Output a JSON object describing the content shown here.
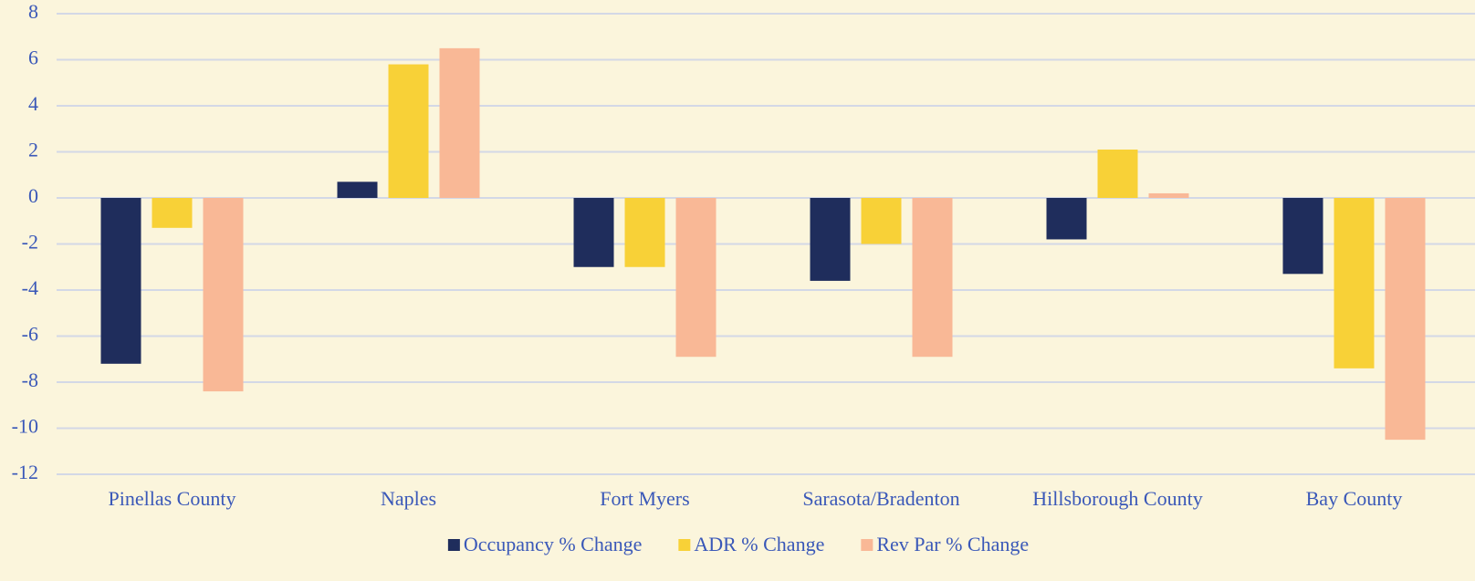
{
  "chart_data": {
    "type": "bar",
    "categories": [
      "Pinellas County",
      "Naples",
      "Fort Myers",
      "Sarasota/Bradenton",
      "Hillsborough County",
      "Bay County"
    ],
    "series": [
      {
        "name": "Occupancy % Change",
        "color": "#1f2d5c",
        "values": [
          -7.2,
          0.7,
          -3.0,
          -3.6,
          -1.8,
          -3.3
        ]
      },
      {
        "name": "ADR % Change",
        "color": "#f8d137",
        "values": [
          -1.3,
          5.8,
          -3.0,
          -2.0,
          2.1,
          -7.4
        ]
      },
      {
        "name": "Rev Par % Change",
        "color": "#f9b896",
        "values": [
          -8.4,
          6.5,
          -6.9,
          -6.9,
          0.2,
          -10.5
        ]
      }
    ],
    "ylim": [
      -12,
      8
    ],
    "yticks": [
      -12,
      -10,
      -8,
      -6,
      -4,
      -2,
      0,
      2,
      4,
      6,
      8
    ],
    "grid": true,
    "legend": "bottom"
  }
}
